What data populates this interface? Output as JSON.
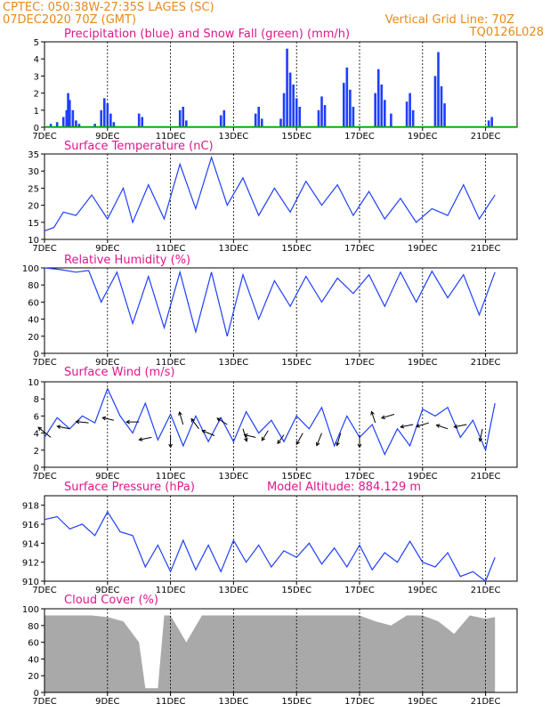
{
  "header": {
    "station": "CPTEC:   050:38W-27:35S   LAGES (SC)",
    "run": "07DEC2020 70Z (GMT)",
    "vgrid": "Vertical Grid Line: 70Z",
    "model": "TQ0126L028"
  },
  "x_labels": [
    "7DEC",
    "9DEC",
    "11DEC",
    "13DEC",
    "15DEC",
    "17DEC",
    "19DEC",
    "21DEC"
  ],
  "colors": {
    "precip": "#1f3fff",
    "snow": "#00aa00",
    "line": "#1f3fff",
    "cloud": "#a9a9a9",
    "title": "#e0168c",
    "header": "#e8891a"
  },
  "panels": {
    "precip": {
      "title": "Precipitation (blue) and Snow Fall (green) (mm/h)"
    },
    "temp": {
      "title": "Surface Temperature (nC)"
    },
    "rh": {
      "title": "Relative Humidity (%)"
    },
    "wind": {
      "title": "Surface Wind (m/s)"
    },
    "pres": {
      "title": "Surface Pressure (hPa)",
      "altitude": "Model Altitude: 884.129 m"
    },
    "cloud": {
      "title": "Cloud Cover (%)"
    }
  },
  "chart_data": [
    {
      "type": "bar",
      "title": "Precipitation (blue) and Snow Fall (green) (mm/h)",
      "x_unit": "days since 07DEC2020 00Z",
      "ylim": [
        0,
        5
      ],
      "yticks": [
        0,
        1,
        2,
        3,
        4,
        5
      ],
      "series": [
        {
          "name": "Precipitation",
          "values": [
            [
              0.2,
              0.2
            ],
            [
              0.4,
              0.3
            ],
            [
              0.6,
              0.6
            ],
            [
              0.7,
              1.0
            ],
            [
              0.75,
              2.0
            ],
            [
              0.8,
              1.6
            ],
            [
              0.9,
              1.0
            ],
            [
              1.0,
              0.4
            ],
            [
              1.1,
              0.2
            ],
            [
              1.6,
              0.2
            ],
            [
              1.8,
              1.0
            ],
            [
              1.9,
              1.7
            ],
            [
              2.0,
              1.4
            ],
            [
              2.1,
              0.8
            ],
            [
              2.2,
              0.3
            ],
            [
              3.0,
              0.8
            ],
            [
              3.1,
              0.6
            ],
            [
              4.3,
              1.0
            ],
            [
              4.4,
              1.2
            ],
            [
              4.5,
              0.4
            ],
            [
              5.6,
              0.7
            ],
            [
              5.7,
              1.0
            ],
            [
              6.7,
              0.8
            ],
            [
              6.8,
              1.2
            ],
            [
              6.9,
              0.5
            ],
            [
              7.5,
              0.5
            ],
            [
              7.6,
              2.0
            ],
            [
              7.7,
              4.6
            ],
            [
              7.8,
              3.2
            ],
            [
              7.9,
              2.5
            ],
            [
              8.0,
              1.7
            ],
            [
              8.1,
              1.2
            ],
            [
              8.7,
              1.0
            ],
            [
              8.8,
              1.8
            ],
            [
              8.9,
              1.3
            ],
            [
              9.5,
              2.6
            ],
            [
              9.6,
              3.5
            ],
            [
              9.7,
              2.2
            ],
            [
              9.8,
              1.2
            ],
            [
              10.5,
              2.0
            ],
            [
              10.6,
              3.4
            ],
            [
              10.7,
              2.5
            ],
            [
              10.8,
              1.6
            ],
            [
              11.0,
              0.8
            ],
            [
              11.5,
              1.5
            ],
            [
              11.6,
              2.0
            ],
            [
              11.7,
              1.0
            ],
            [
              12.4,
              3.0
            ],
            [
              12.5,
              4.4
            ],
            [
              12.6,
              2.4
            ],
            [
              12.7,
              1.4
            ],
            [
              14.1,
              0.4
            ],
            [
              14.2,
              0.6
            ]
          ]
        },
        {
          "name": "Snow Fall",
          "values": []
        }
      ]
    },
    {
      "type": "line",
      "title": "Surface Temperature (nC)",
      "x_unit": "days since 07DEC2020 00Z",
      "ylim": [
        10,
        35
      ],
      "yticks": [
        10,
        15,
        20,
        25,
        30,
        35
      ],
      "x": [
        0,
        0.3,
        0.6,
        1.0,
        1.5,
        2.0,
        2.5,
        2.8,
        3.3,
        3.8,
        4.3,
        4.8,
        5.3,
        5.8,
        6.3,
        6.8,
        7.3,
        7.8,
        8.3,
        8.8,
        9.3,
        9.8,
        10.3,
        10.8,
        11.3,
        11.8,
        12.3,
        12.8,
        13.3,
        13.8,
        14.3
      ],
      "values": [
        12.5,
        13.5,
        18,
        17,
        23,
        16,
        25,
        15,
        26,
        16,
        32,
        19,
        34,
        20,
        28,
        17,
        25,
        18,
        27,
        20,
        26,
        17,
        24,
        16,
        22,
        15,
        19,
        17,
        26,
        16,
        23
      ]
    },
    {
      "type": "line",
      "title": "Relative Humidity (%)",
      "x_unit": "days since 07DEC2020 00Z",
      "ylim": [
        0,
        100
      ],
      "yticks": [
        0,
        20,
        40,
        60,
        80,
        100
      ],
      "x": [
        0,
        0.5,
        1.0,
        1.4,
        1.8,
        2.3,
        2.8,
        3.3,
        3.8,
        4.3,
        4.8,
        5.3,
        5.8,
        6.3,
        6.8,
        7.3,
        7.8,
        8.3,
        8.8,
        9.3,
        9.8,
        10.3,
        10.8,
        11.3,
        11.8,
        12.3,
        12.8,
        13.3,
        13.8,
        14.3
      ],
      "values": [
        100,
        98,
        95,
        97,
        60,
        95,
        35,
        90,
        30,
        95,
        25,
        95,
        20,
        92,
        40,
        85,
        55,
        90,
        60,
        88,
        70,
        92,
        55,
        95,
        60,
        96,
        65,
        92,
        45,
        95
      ]
    },
    {
      "type": "line",
      "title": "Surface Wind (m/s)",
      "x_unit": "days since 07DEC2020 00Z",
      "ylim": [
        0,
        10
      ],
      "yticks": [
        0,
        2,
        4,
        6,
        8,
        10
      ],
      "x": [
        0,
        0.4,
        0.8,
        1.2,
        1.6,
        2.0,
        2.4,
        2.8,
        3.2,
        3.6,
        4.0,
        4.4,
        4.8,
        5.2,
        5.6,
        6.0,
        6.4,
        6.8,
        7.2,
        7.6,
        8.0,
        8.4,
        8.8,
        9.2,
        9.6,
        10.0,
        10.4,
        10.8,
        11.2,
        11.6,
        12.0,
        12.4,
        12.8,
        13.2,
        13.6,
        14.0,
        14.3
      ],
      "values": [
        3.5,
        5.8,
        4.5,
        6.0,
        5.2,
        9.2,
        6.0,
        4.0,
        7.5,
        3.2,
        6.2,
        2.5,
        6.0,
        3.0,
        5.8,
        3.0,
        6.5,
        4.0,
        5.5,
        3.0,
        6.0,
        4.5,
        7.0,
        2.5,
        6.0,
        3.5,
        5.0,
        1.5,
        4.5,
        2.5,
        6.8,
        6.0,
        7.0,
        3.5,
        5.5,
        2.0,
        7.5
      ],
      "wind_arrows": [
        {
          "x": 0.2,
          "y": 3.5,
          "dx": -1,
          "dy": -0.8
        },
        {
          "x": 0.8,
          "y": 4.5,
          "dx": -1,
          "dy": -0.2
        },
        {
          "x": 1.4,
          "y": 5.2,
          "dx": -1,
          "dy": -0.1
        },
        {
          "x": 2.2,
          "y": 5.5,
          "dx": -0.9,
          "dy": -0.2
        },
        {
          "x": 3.0,
          "y": 5.3,
          "dx": -1,
          "dy": 0
        },
        {
          "x": 3.4,
          "y": 3.5,
          "dx": -1,
          "dy": 0.2
        },
        {
          "x": 4.0,
          "y": 3.8,
          "dx": 0,
          "dy": 1
        },
        {
          "x": 4.4,
          "y": 5.0,
          "dx": -0.3,
          "dy": -1
        },
        {
          "x": 4.9,
          "y": 4.5,
          "dx": -0.6,
          "dy": -0.8
        },
        {
          "x": 5.4,
          "y": 3.7,
          "dx": -1,
          "dy": -0.4
        },
        {
          "x": 5.8,
          "y": 5.0,
          "dx": -0.8,
          "dy": -0.5
        },
        {
          "x": 6.3,
          "y": 4.5,
          "dx": 0.3,
          "dy": 1
        },
        {
          "x": 6.7,
          "y": 3.5,
          "dx": -0.9,
          "dy": -0.2
        },
        {
          "x": 7.1,
          "y": 4.3,
          "dx": -0.5,
          "dy": 0.8
        },
        {
          "x": 7.6,
          "y": 3.8,
          "dx": -0.5,
          "dy": 0.7
        },
        {
          "x": 8.2,
          "y": 4.0,
          "dx": -0.5,
          "dy": 0.9
        },
        {
          "x": 8.8,
          "y": 4.0,
          "dx": -0.4,
          "dy": 1
        },
        {
          "x": 9.4,
          "y": 4.0,
          "dx": -0.3,
          "dy": 1
        },
        {
          "x": 10.0,
          "y": 3.8,
          "dx": 0,
          "dy": 1
        },
        {
          "x": 10.5,
          "y": 5.2,
          "dx": -0.3,
          "dy": -0.9
        },
        {
          "x": 11.1,
          "y": 6.2,
          "dx": -1,
          "dy": 0.3
        },
        {
          "x": 11.7,
          "y": 5.0,
          "dx": -1,
          "dy": 0.2
        },
        {
          "x": 12.2,
          "y": 5.2,
          "dx": -1,
          "dy": 0.3
        },
        {
          "x": 12.8,
          "y": 4.5,
          "dx": -0.9,
          "dy": -0.3
        },
        {
          "x": 13.4,
          "y": 5.0,
          "dx": -1,
          "dy": 0.2
        },
        {
          "x": 13.9,
          "y": 4.5,
          "dx": -0.2,
          "dy": 1
        }
      ]
    },
    {
      "type": "line",
      "title": "Surface Pressure (hPa)",
      "x_unit": "days since 07DEC2020 00Z",
      "ylim": [
        910,
        919
      ],
      "yticks": [
        910,
        912,
        914,
        916,
        918
      ],
      "x": [
        0,
        0.4,
        0.8,
        1.2,
        1.6,
        2.0,
        2.4,
        2.8,
        3.2,
        3.6,
        4.0,
        4.4,
        4.8,
        5.2,
        5.6,
        6.0,
        6.4,
        6.8,
        7.2,
        7.6,
        8.0,
        8.4,
        8.8,
        9.2,
        9.6,
        10.0,
        10.4,
        10.8,
        11.2,
        11.6,
        12.0,
        12.4,
        12.8,
        13.2,
        13.6,
        14.0,
        14.3
      ],
      "values": [
        916.5,
        916.8,
        915.5,
        916.0,
        914.8,
        917.3,
        915.2,
        914.8,
        911.5,
        913.8,
        911.0,
        914.3,
        911.2,
        913.8,
        911.0,
        914.3,
        912.0,
        913.8,
        911.5,
        913.2,
        912.5,
        914.0,
        911.8,
        913.5,
        911.5,
        913.8,
        911.2,
        913.0,
        912.0,
        914.2,
        912.0,
        911.5,
        913.0,
        910.5,
        911.0,
        910.0,
        912.5
      ]
    },
    {
      "type": "area",
      "title": "Cloud Cover (%)",
      "x_unit": "days since 07DEC2020 00Z",
      "ylim": [
        0,
        100
      ],
      "yticks": [
        0,
        20,
        40,
        60,
        80,
        100
      ],
      "x": [
        0,
        0.5,
        1.0,
        1.5,
        2.0,
        2.5,
        3.0,
        3.2,
        3.6,
        3.8,
        4.0,
        4.5,
        5.0,
        5.5,
        6.0,
        6.5,
        7.0,
        7.5,
        8.0,
        8.5,
        9.0,
        9.5,
        10.0,
        10.5,
        11.0,
        11.5,
        12.0,
        12.5,
        13.0,
        13.5,
        14.0,
        14.3
      ],
      "values": [
        92,
        92,
        92,
        92,
        90,
        85,
        60,
        5,
        5,
        92,
        92,
        60,
        92,
        92,
        92,
        92,
        92,
        92,
        92,
        92,
        92,
        92,
        92,
        85,
        80,
        92,
        92,
        85,
        70,
        92,
        88,
        90
      ]
    }
  ]
}
